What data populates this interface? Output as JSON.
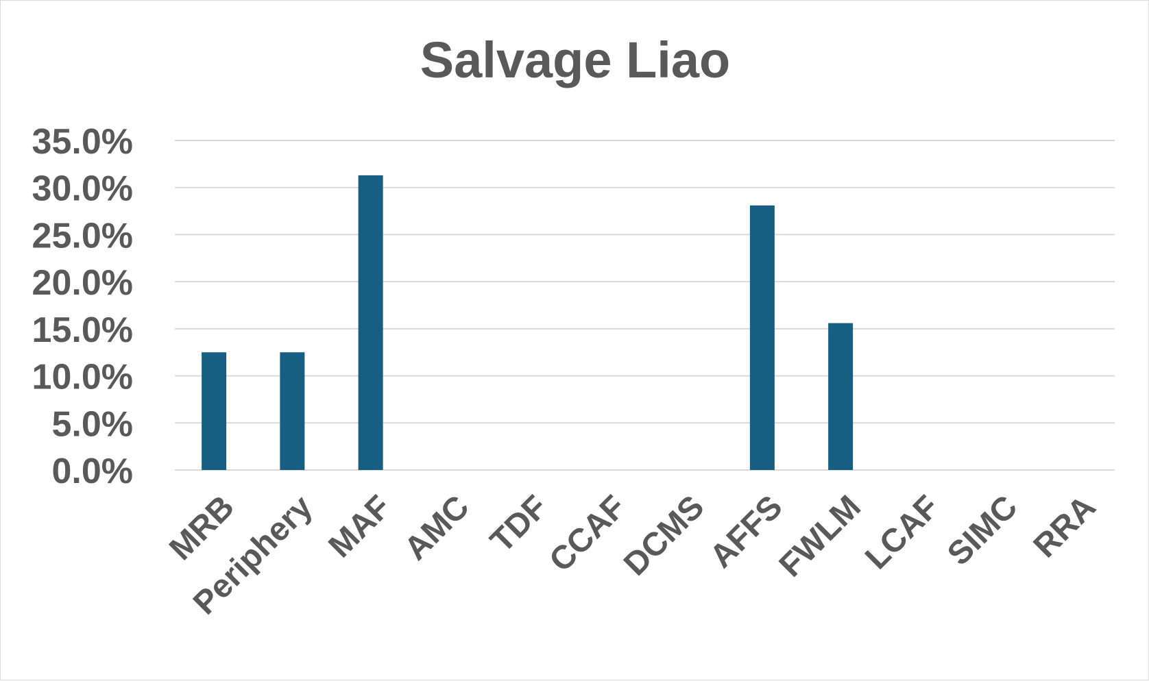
{
  "chart_data": {
    "type": "bar",
    "title": "Salvage Liao",
    "categories": [
      "MRB",
      "Periphery",
      "MAF",
      "AMC",
      "TDF",
      "CCAF",
      "DCMS",
      "AFFS",
      "FWLM",
      "LCAF",
      "SIMC",
      "RRA"
    ],
    "values": [
      12.5,
      12.5,
      31.3,
      0,
      0,
      0,
      0,
      28.1,
      15.6,
      0,
      0,
      0
    ],
    "value_unit": "%",
    "ylim": [
      0,
      35
    ],
    "yticks": [
      0,
      5,
      10,
      15,
      20,
      25,
      30,
      35
    ],
    "ytick_labels": [
      "0.0%",
      "5.0%",
      "10.0%",
      "15.0%",
      "20.0%",
      "25.0%",
      "30.0%",
      "35.0%"
    ],
    "xlabel": "",
    "ylabel": "",
    "grid": true,
    "legend": "none",
    "bar_color": "#175f82",
    "grid_color": "#d9d9d9",
    "text_color": "#595959"
  }
}
